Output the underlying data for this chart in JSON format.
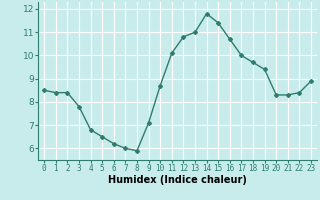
{
  "x": [
    0,
    1,
    2,
    3,
    4,
    5,
    6,
    7,
    8,
    9,
    10,
    11,
    12,
    13,
    14,
    15,
    16,
    17,
    18,
    19,
    20,
    21,
    22,
    23
  ],
  "y": [
    8.5,
    8.4,
    8.4,
    7.8,
    6.8,
    6.5,
    6.2,
    6.0,
    5.9,
    7.1,
    8.7,
    10.1,
    10.8,
    11.0,
    11.8,
    11.4,
    10.7,
    10.0,
    9.7,
    9.4,
    8.3,
    8.3,
    8.4,
    8.9
  ],
  "line_color": "#2e7d6e",
  "marker": "D",
  "marker_size": 2,
  "bg_color": "#c8ecec",
  "grid_color": "#ffffff",
  "xlabel": "Humidex (Indice chaleur)",
  "ylim": [
    5.5,
    12.3
  ],
  "xlim": [
    -0.5,
    23.5
  ],
  "yticks": [
    6,
    7,
    8,
    9,
    10,
    11,
    12
  ],
  "xticks": [
    0,
    1,
    2,
    3,
    4,
    5,
    6,
    7,
    8,
    9,
    10,
    11,
    12,
    13,
    14,
    15,
    16,
    17,
    18,
    19,
    20,
    21,
    22,
    23
  ],
  "xlabel_fontsize": 7,
  "ytick_fontsize": 6.5,
  "xtick_fontsize": 5.5,
  "line_width": 1.0
}
